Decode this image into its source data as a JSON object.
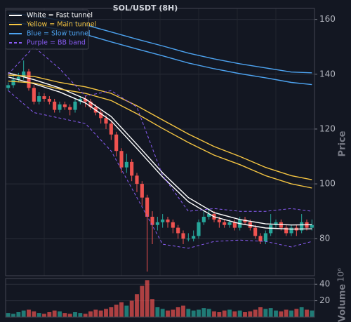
{
  "chart_data": {
    "type": "candlestick",
    "title": "SOL/USDT (8H)",
    "y_label": "Price",
    "y2_label": "Volume",
    "y2_scale_label": "10⁶",
    "grid": true,
    "legend": "upper left",
    "xlim": [
      -0.5,
      59.5
    ],
    "ylim": [
      66.5,
      164
    ],
    "yticks": [
      80,
      100,
      120,
      140,
      160
    ],
    "y2lim": [
      0,
      47
    ],
    "y2ticks": [
      20,
      40
    ],
    "candles": {
      "up_color": "#26a69a",
      "down_color": "#ef5350",
      "open": [
        135,
        136,
        138,
        139,
        141,
        135,
        130,
        132,
        131,
        130,
        127,
        129,
        128,
        127,
        130,
        131,
        130,
        128,
        126,
        124,
        122,
        118,
        112,
        106,
        108,
        103,
        100,
        95,
        88,
        85,
        86,
        87,
        86,
        84,
        82,
        80,
        80,
        81,
        86,
        88,
        89,
        87,
        86,
        85,
        86,
        84,
        87,
        86,
        84,
        81,
        79,
        82,
        85,
        86,
        84,
        82,
        84,
        83,
        86,
        84
      ],
      "high": [
        137,
        139.5,
        140.5,
        145,
        142,
        136,
        133.5,
        133,
        132,
        131,
        130,
        130,
        129,
        131,
        132,
        132,
        131,
        129,
        127,
        125,
        123,
        119,
        113,
        111,
        109,
        104,
        101,
        96,
        90,
        88,
        89,
        88,
        87,
        85,
        83,
        82,
        83,
        87,
        90,
        91,
        90,
        88,
        87,
        87,
        87,
        88,
        88,
        87,
        85,
        82,
        83,
        89,
        87,
        87,
        85,
        85,
        85,
        89,
        87,
        87
      ],
      "low": [
        134,
        135,
        137,
        138,
        134,
        129,
        129,
        130,
        129,
        126,
        126,
        127,
        125,
        126,
        129,
        128,
        127,
        125,
        122,
        120,
        116,
        110,
        104,
        104,
        101,
        97,
        92,
        68,
        78,
        83,
        84,
        84,
        82,
        80,
        78,
        79,
        79,
        80,
        85,
        87,
        86,
        84,
        84,
        84,
        83,
        83,
        85,
        83,
        80,
        78,
        78,
        81,
        84,
        83,
        81,
        81,
        81,
        82,
        83,
        83
      ],
      "close": [
        136,
        138,
        139,
        141,
        135,
        130,
        132,
        131,
        130,
        127,
        129,
        128,
        127,
        130,
        131,
        130,
        128,
        126,
        124,
        122,
        118,
        112,
        106,
        108,
        103,
        100,
        95,
        88,
        85,
        86,
        87,
        86,
        84,
        82,
        80,
        80,
        81,
        86,
        88,
        89,
        87,
        86,
        85,
        86,
        84,
        87,
        86,
        84,
        81,
        79,
        82,
        85,
        86,
        84,
        82,
        84,
        83,
        86,
        84,
        85
      ]
    },
    "volume": [
      5,
      4,
      6,
      8,
      9,
      7,
      5,
      4,
      6,
      8,
      7,
      5,
      4,
      6,
      5,
      4,
      7,
      9,
      8,
      10,
      12,
      15,
      18,
      14,
      20,
      28,
      38,
      45,
      22,
      12,
      10,
      8,
      9,
      12,
      14,
      10,
      8,
      9,
      11,
      10,
      7,
      6,
      8,
      9,
      7,
      8,
      6,
      7,
      9,
      12,
      10,
      11,
      8,
      7,
      9,
      8,
      10,
      12,
      9,
      8
    ],
    "series": [
      {
        "name": "White = Fast tunnel",
        "color": "#ffffff",
        "dash": false,
        "x": [
          0,
          5,
          10,
          15,
          20,
          25,
          30,
          35,
          40,
          45,
          50,
          55,
          59
        ],
        "values": [
          140.5,
          138,
          135,
          131,
          124.6,
          114.4,
          104,
          95,
          89.5,
          87,
          85.4,
          85,
          85.1
        ]
      },
      {
        "color": "#ffffff",
        "dash": false,
        "x": [
          0,
          5,
          10,
          15,
          20,
          25,
          30,
          35,
          40,
          45,
          50,
          55,
          59
        ],
        "values": [
          139,
          136.5,
          133.5,
          129.5,
          123,
          112.9,
          102.5,
          93.5,
          88,
          85.5,
          83.9,
          83.5,
          83.6
        ]
      },
      {
        "name": "Yellow = Main tunnel",
        "color": "#f5c542",
        "dash": false,
        "x": [
          0,
          5,
          10,
          15,
          20,
          25,
          30,
          35,
          40,
          45,
          50,
          55,
          59
        ],
        "values": [
          139.7,
          139.2,
          137,
          135.4,
          133,
          128.5,
          123.3,
          118.2,
          113.6,
          110,
          106,
          103,
          101.5
        ]
      },
      {
        "color": "#f5c542",
        "dash": false,
        "x": [
          0,
          5,
          10,
          15,
          20,
          25,
          30,
          35,
          40,
          45,
          50,
          55,
          59
        ],
        "values": [
          137.5,
          136.8,
          134.6,
          133,
          130.4,
          125.6,
          120.2,
          115.1,
          110.5,
          107,
          103,
          100,
          98.5
        ]
      },
      {
        "name": "Blue = Slow tunnel",
        "color": "#4da3f0",
        "dash": false,
        "x": [
          0,
          5,
          10,
          15,
          20,
          25,
          30,
          35,
          40,
          45,
          50,
          55,
          59
        ],
        "values": [
          162.3,
          161.3,
          159.7,
          158,
          155.4,
          152.8,
          150.3,
          147.7,
          145.6,
          143.8,
          142.3,
          140.8,
          140.5
        ]
      },
      {
        "color": "#4da3f0",
        "dash": false,
        "x": [
          0,
          5,
          10,
          15,
          20,
          25,
          30,
          35,
          40,
          45,
          50,
          55,
          59
        ],
        "values": [
          159,
          158,
          156.3,
          154.5,
          151.8,
          149.2,
          146.7,
          144.1,
          142,
          140.2,
          138.7,
          137,
          136.2
        ]
      },
      {
        "name": "Purple = BB band",
        "color": "#8a5cf5",
        "dash": true,
        "x": [
          0,
          5,
          10,
          15,
          20,
          25,
          30,
          35,
          40,
          45,
          50,
          55,
          59
        ],
        "values": [
          140,
          150,
          142,
          132,
          134,
          128,
          103,
          90,
          91,
          90,
          90,
          91,
          90
        ]
      },
      {
        "color": "#8a5cf5",
        "dash": true,
        "x": [
          0,
          5,
          10,
          15,
          20,
          25,
          30,
          35,
          40,
          45,
          50,
          55,
          59
        ],
        "values": [
          134,
          126,
          124,
          122,
          112,
          95,
          78,
          76.5,
          79,
          79.5,
          79,
          77,
          79
        ]
      }
    ]
  }
}
